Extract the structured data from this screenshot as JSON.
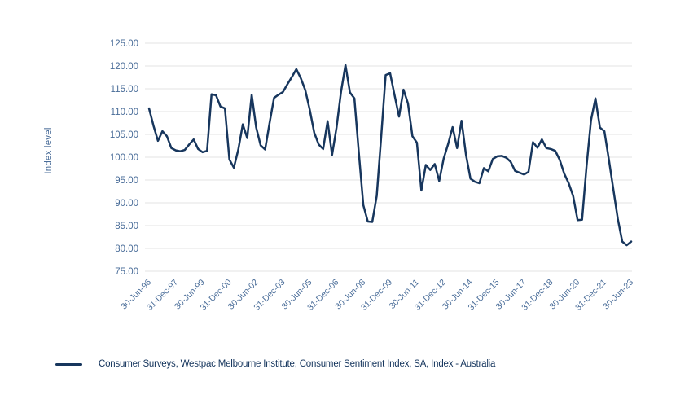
{
  "chart": {
    "y_axis_title": "Index level",
    "legend_label": "Consumer Surveys, Westpac Melbourne Institute, Consumer Sentiment Index, SA, Index - Australia",
    "colors": {
      "line": "#17365d",
      "axis_text": "#4a6d99",
      "gridline": "#e3e3e3",
      "legend_text": "#14345c"
    }
  },
  "chart_data": {
    "type": "line",
    "title": "",
    "xlabel": "",
    "ylabel": "Index level",
    "ylim": [
      75,
      125
    ],
    "grid": "horizontal",
    "legend_position": "bottom",
    "frequency": "quarterly",
    "points_per_tick": 6,
    "y_ticks": [
      "125.00",
      "120.00",
      "115.00",
      "110.00",
      "105.00",
      "100.00",
      "95.00",
      "90.00",
      "85.00",
      "80.00",
      "75.00"
    ],
    "x_tick_labels": [
      "30-Jun-96",
      "31-Dec-97",
      "30-Jun-99",
      "31-Dec-00",
      "30-Jun-02",
      "31-Dec-03",
      "30-Jun-05",
      "31-Dec-06",
      "30-Jun-08",
      "31-Dec-09",
      "30-Jun-11",
      "31-Dec-12",
      "30-Jun-14",
      "31-Dec-15",
      "30-Jun-17",
      "31-Dec-18",
      "30-Jun-20",
      "31-Dec-21",
      "30-Jun-23"
    ],
    "series": [
      {
        "name": "Consumer Surveys, Westpac Melbourne Institute, Consumer Sentiment Index, SA, Index - Australia",
        "values": [
          110.7,
          106.9,
          103.6,
          105.7,
          104.6,
          102.0,
          101.5,
          101.3,
          101.6,
          102.8,
          103.9,
          101.8,
          101.1,
          101.4,
          113.8,
          113.6,
          111.1,
          110.7,
          99.5,
          97.7,
          101.7,
          107.2,
          104.2,
          113.7,
          106.5,
          102.6,
          101.7,
          107.5,
          113.0,
          113.7,
          114.3,
          116.0,
          117.6,
          119.3,
          117.3,
          114.7,
          110.4,
          105.4,
          102.8,
          101.8,
          107.9,
          100.5,
          106.5,
          114.3,
          120.2,
          114.2,
          112.9,
          100.9,
          89.5,
          85.9,
          85.8,
          91.5,
          104.5,
          118.0,
          118.4,
          113.6,
          108.9,
          114.8,
          111.8,
          104.6,
          103.2,
          92.7,
          98.3,
          97.2,
          98.5,
          94.8,
          99.7,
          102.9,
          106.6,
          102.0,
          108.0,
          100.5,
          95.3,
          94.6,
          94.3,
          97.6,
          96.9,
          99.6,
          100.2,
          100.3,
          99.9,
          99.0,
          97.0,
          96.6,
          96.2,
          96.8,
          103.3,
          102.1,
          103.9,
          102.0,
          101.8,
          101.4,
          99.4,
          96.4,
          94.3,
          91.5,
          86.2,
          86.3,
          98.0,
          108.1,
          112.9,
          106.5,
          105.7,
          99.5,
          93.0,
          86.5,
          81.5,
          80.7,
          81.5
        ]
      }
    ]
  }
}
